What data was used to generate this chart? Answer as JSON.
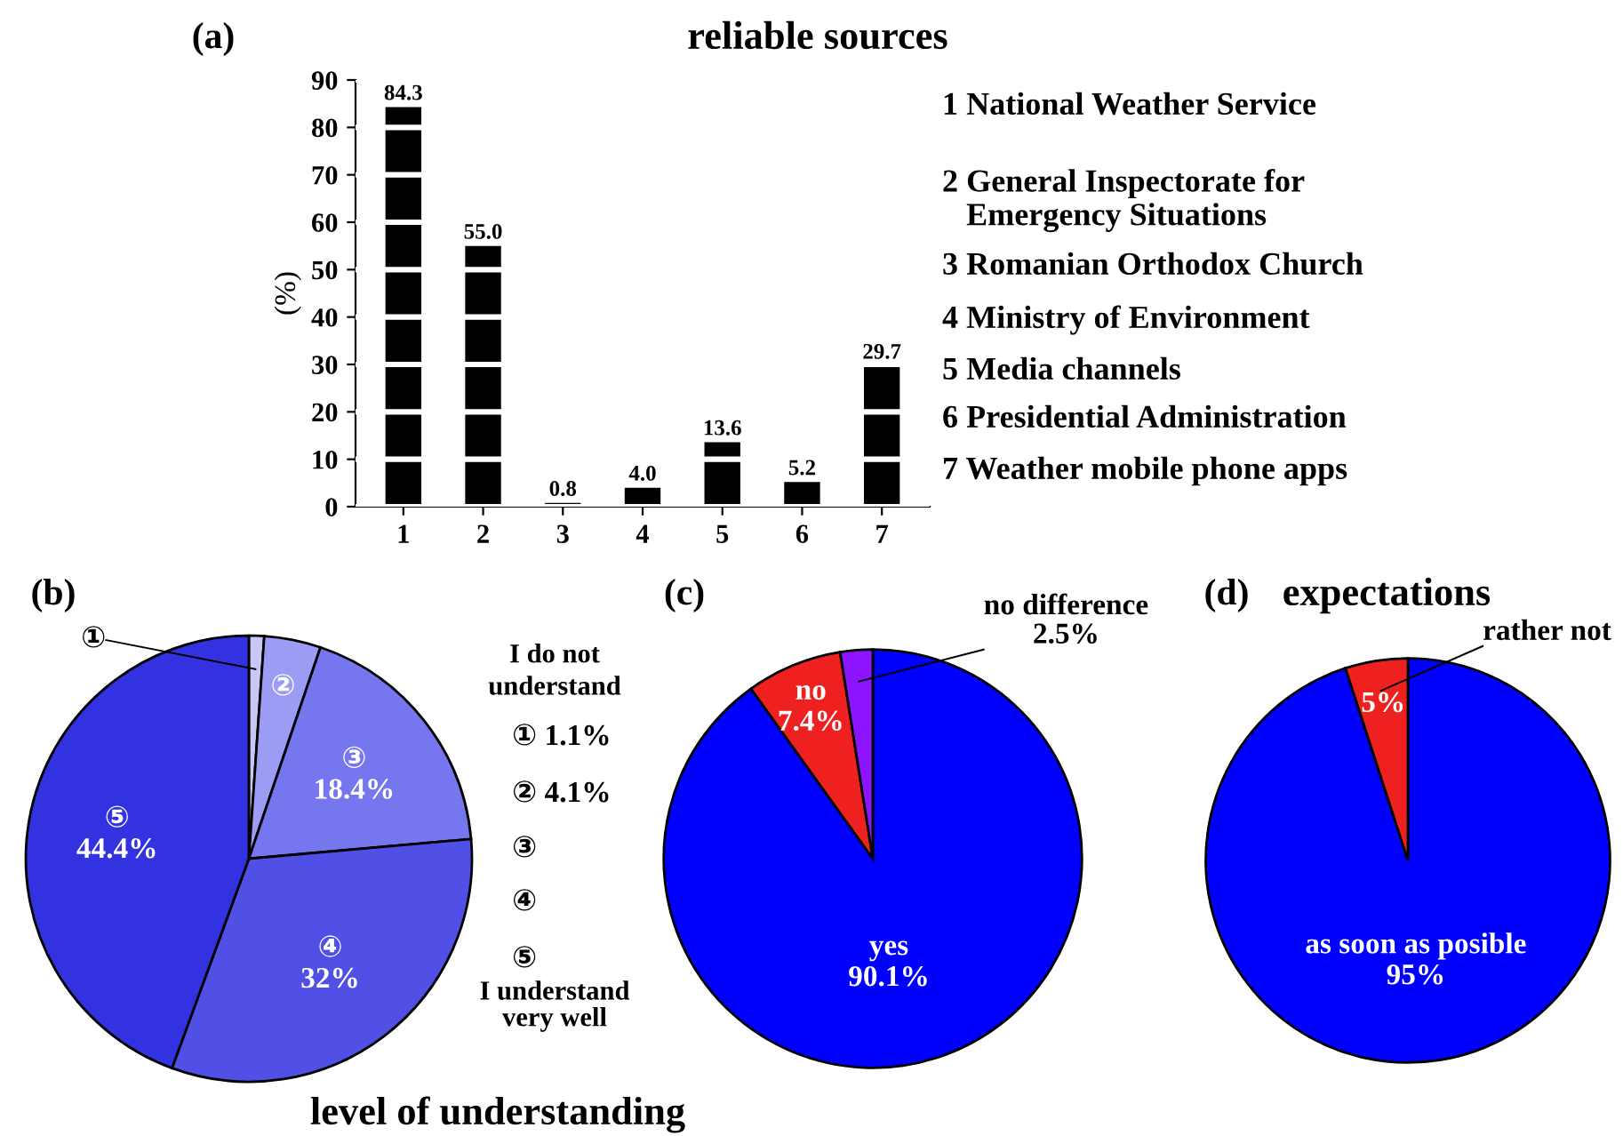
{
  "chart_data": [
    {
      "type": "bar",
      "title": "reliable sources",
      "ylabel": "(%)",
      "categories": [
        "1",
        "2",
        "3",
        "4",
        "5",
        "6",
        "7"
      ],
      "values": [
        84.3,
        55.0,
        0.8,
        4.0,
        13.6,
        5.2,
        29.7
      ],
      "value_labels": [
        "84.3",
        "55.0",
        "0.8",
        "4.0",
        "13.6",
        "5.2",
        "29.7"
      ],
      "color": "#000000",
      "ylim": [
        0,
        90
      ],
      "yticks": [
        0,
        10,
        20,
        30,
        40,
        50,
        60,
        70,
        80,
        90
      ],
      "grid": "y",
      "annotations": [
        "(a)",
        "1 National Weather Service",
        "2 General Inspectorate for\n   Emergency Situations",
        "3 Romanian Orthodox Church",
        "4 Ministry of Environment",
        "5 Media channels",
        "6 Presidential Administration",
        "7 Weather mobile phone apps"
      ]
    },
    {
      "type": "pie",
      "title": "level of understanding",
      "categories": [
        "①",
        "②",
        "③",
        "④",
        "⑤"
      ],
      "values": [
        1.1,
        4.1,
        18.4,
        32,
        44.4
      ],
      "colors": [
        "#c8c8f6",
        "#9c9cf4",
        "#7676ee",
        "#5050e6",
        "#3232e0"
      ],
      "value_labels": [
        "1.1%",
        "4.1%",
        "18.4%",
        "32%",
        "44.4%"
      ],
      "annotations": [
        "(b)",
        "I do not\nunderstand",
        "I understand\nvery well"
      ]
    },
    {
      "type": "pie",
      "categories": [
        "yes",
        "no",
        "no difference"
      ],
      "values": [
        90.1,
        7.4,
        2.5
      ],
      "colors": [
        "#0000ff",
        "#ee2020",
        "#8c14ff"
      ],
      "value_labels": [
        "90.1%",
        "7.4%",
        "2.5%"
      ],
      "annotations": [
        "(c)"
      ]
    },
    {
      "type": "pie",
      "title": "expectations",
      "categories": [
        "as soon as posible",
        "rather not"
      ],
      "values": [
        95,
        5
      ],
      "colors": [
        "#0000ff",
        "#ee2020"
      ],
      "value_labels": [
        "95%",
        "5%"
      ],
      "annotations": [
        "(d)"
      ]
    }
  ]
}
